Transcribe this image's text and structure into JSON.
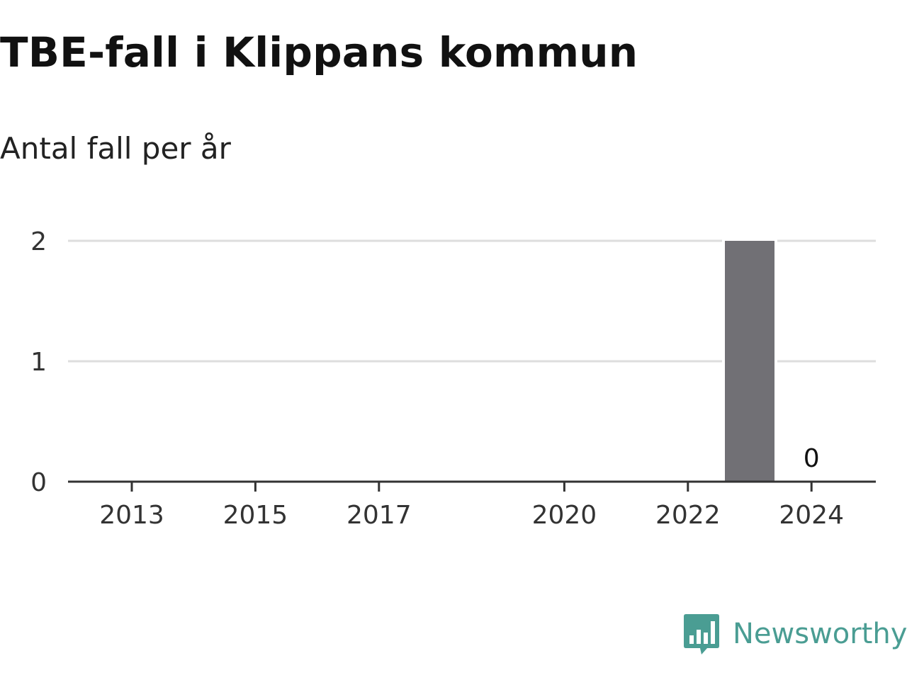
{
  "title": "TBE-fall i Klippans kommun",
  "subtitle": "Antal fall per år",
  "brand": {
    "name": "Newsworthy",
    "icon": "newsworthy-logo-icon",
    "color": "#4a9d93"
  },
  "chart_data": {
    "type": "bar",
    "x": [
      2013,
      2014,
      2015,
      2016,
      2017,
      2018,
      2019,
      2020,
      2021,
      2022,
      2023,
      2024
    ],
    "values": [
      0,
      0,
      0,
      0,
      0,
      0,
      0,
      0,
      0,
      0,
      2,
      0
    ],
    "x_tick_labels": [
      "2013",
      "2015",
      "2017",
      "2020",
      "2022",
      "2024"
    ],
    "y_ticks": [
      0,
      1,
      2
    ],
    "ylim": [
      0,
      2
    ],
    "data_labels": [
      {
        "x": 2024,
        "text": "0"
      }
    ],
    "bar_color": "#717075",
    "grid": true,
    "grid_color": "#dddddd",
    "axis_color": "#333333"
  }
}
